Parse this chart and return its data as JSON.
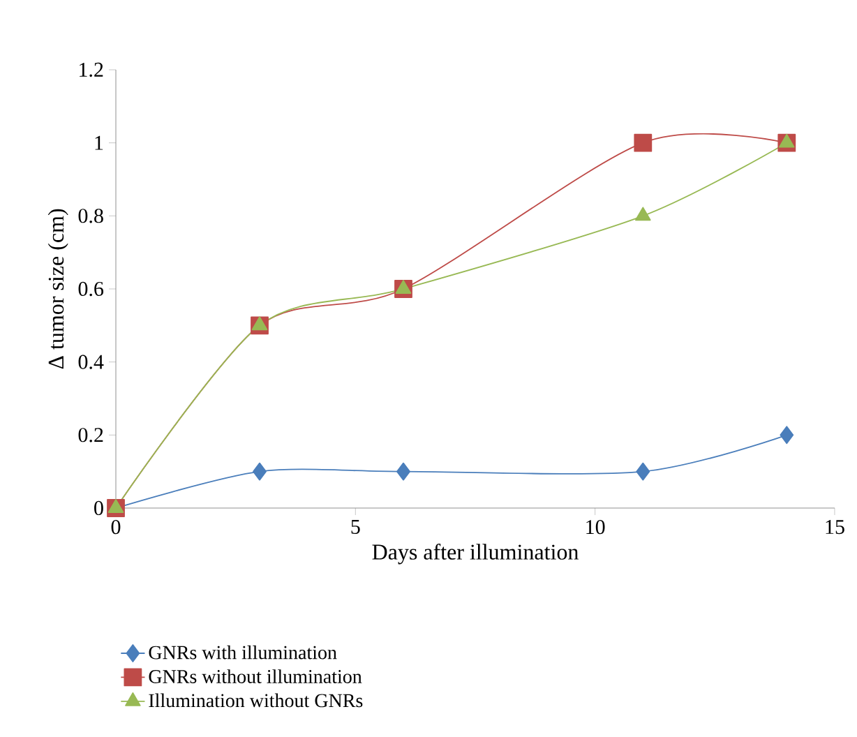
{
  "chart_data": {
    "type": "line",
    "xlabel": "Days after illumination",
    "ylabel": "Δ tumor size (cm)",
    "xlim": [
      0,
      15
    ],
    "ylim": [
      0,
      1.2
    ],
    "xticks": [
      0,
      5,
      10,
      15
    ],
    "yticks": [
      0,
      0.2,
      0.4,
      0.6,
      0.8,
      1,
      1.2
    ],
    "x": [
      0,
      3,
      6,
      11,
      14
    ],
    "series": [
      {
        "name": "GNRs with illumination",
        "color": "#4a7ebb",
        "marker": "diamond",
        "values": [
          0,
          0.1,
          0.1,
          0.1,
          0.2
        ]
      },
      {
        "name": "GNRs without illumination",
        "color": "#be4b48",
        "marker": "square",
        "values": [
          0,
          0.5,
          0.6,
          1,
          1
        ]
      },
      {
        "name": "Illumination without GNRs",
        "color": "#98b954",
        "marker": "triangle",
        "values": [
          0,
          0.5,
          0.6,
          0.8,
          1
        ]
      }
    ],
    "legend": "bottom",
    "grid": false,
    "line_style": "solid"
  }
}
